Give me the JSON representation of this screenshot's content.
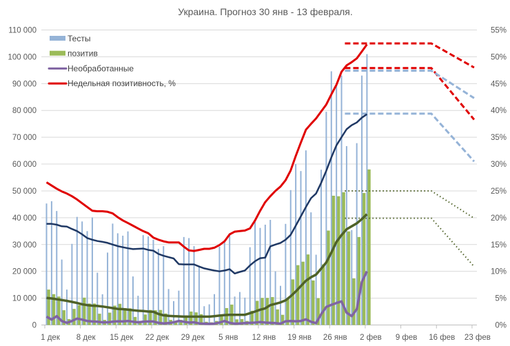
{
  "chart_data": {
    "type": "bar+line",
    "title": "Украина. Прогноз 30 янв - 13 февраля.",
    "left_axis": {
      "ylim": [
        0,
        110000
      ],
      "ticks": [
        "0",
        "10 000",
        "20 000",
        "30 000",
        "40 000",
        "50 000",
        "60 000",
        "70 000",
        "80 000",
        "90 000",
        "100 000",
        "110 000"
      ]
    },
    "right_axis": {
      "ylim": [
        0,
        55
      ],
      "unit": "%",
      "ticks": [
        "0%",
        "5%",
        "10%",
        "15%",
        "20%",
        "25%",
        "30%",
        "35%",
        "40%",
        "45%",
        "50%",
        "55%"
      ]
    },
    "x_ticks": [
      "1 дек",
      "8 дек",
      "15 дек",
      "22 дек",
      "29 дек",
      "5 янв",
      "12 янв",
      "19 янв",
      "26 янв",
      "2 фев",
      "9 фев",
      "16 фев",
      "23 фев"
    ],
    "grid": true,
    "legend_position": "top-left",
    "legend": [
      {
        "label": "Тесты",
        "kind": "bar",
        "color": "#95b3d7"
      },
      {
        "label": "позитив",
        "kind": "bar",
        "color": "#9bbb59"
      },
      {
        "label": "Необработанные",
        "kind": "line",
        "color": "#8064a2"
      },
      {
        "label": "Недельная позитивность, %",
        "kind": "line",
        "color": "#e00000"
      }
    ],
    "dates": [
      "1 дек",
      "2 дек",
      "3 дек",
      "4 дек",
      "5 дек",
      "6 дек",
      "7 дек",
      "8 дек",
      "9 дек",
      "10 дек",
      "11 дек",
      "12 дек",
      "13 дек",
      "14 дек",
      "15 дек",
      "16 дек",
      "17 дек",
      "18 дек",
      "19 дек",
      "20 дек",
      "21 дек",
      "22 дек",
      "23 дек",
      "24 дек",
      "25 дек",
      "26 дек",
      "27 дек",
      "28 дек",
      "29 дек",
      "30 дек",
      "31 дек",
      "1 янв",
      "2 янв",
      "3 янв",
      "4 янв",
      "5 янв",
      "6 янв",
      "7 янв",
      "8 янв",
      "9 янв",
      "10 янв",
      "11 янв",
      "12 янв",
      "13 янв",
      "14 янв",
      "15 янв",
      "16 янв",
      "17 янв",
      "18 янв",
      "19 янв",
      "20 янв",
      "21 янв",
      "22 янв",
      "23 янв",
      "24 янв",
      "25 янв",
      "26 янв",
      "27 янв",
      "28 янв",
      "29 янв",
      "30 янв",
      "31 янв",
      "1 фев",
      "2 фев"
    ],
    "series": [
      {
        "name": "Тесты",
        "type": "bar",
        "axis": "left",
        "color": "#95b3d7",
        "values": [
          45300,
          46150,
          42500,
          24400,
          13200,
          30250,
          40300,
          38600,
          35000,
          40100,
          19500,
          11450,
          27000,
          37800,
          34200,
          33300,
          34900,
          18100,
          10900,
          33500,
          33000,
          31800,
          28400,
          29400,
          13400,
          8900,
          12800,
          32800,
          32400,
          29400,
          21500,
          7000,
          7700,
          11500,
          29200,
          30900,
          33500,
          10600,
          12300,
          10200,
          29000,
          38600,
          36200,
          37400,
          39200,
          20000,
          14600,
          37700,
          50300,
          60000,
          57400,
          65100,
          42000,
          26200,
          57900,
          79500,
          94600,
          90200,
          93000,
          66700,
          35400,
          67800,
          93000,
          101000
        ]
      },
      {
        "name": "позитив",
        "type": "bar",
        "axis": "left",
        "color": "#9bbb59",
        "values": [
          13200,
          11500,
          10600,
          5500,
          2200,
          6000,
          7400,
          10200,
          8000,
          8000,
          4200,
          1900,
          4600,
          7200,
          7900,
          6300,
          6200,
          3000,
          1500,
          3900,
          5600,
          5500,
          5600,
          4300,
          1900,
          900,
          1900,
          3600,
          5000,
          4700,
          4000,
          1200,
          1000,
          1500,
          3900,
          6300,
          7600,
          2100,
          2200,
          1500,
          5300,
          9000,
          10100,
          10100,
          10400,
          5800,
          3800,
          10000,
          17000,
          22300,
          23600,
          26300,
          16600,
          10000,
          22600,
          35200,
          48200,
          48000,
          49500,
          34900,
          17400,
          32800,
          49200,
          58000
        ]
      },
      {
        "name": "Необработанные",
        "type": "line",
        "axis": "left",
        "color": "#8064a2",
        "values": [
          3100,
          2000,
          3300,
          1500,
          800,
          1500,
          2400,
          2000,
          1500,
          1300,
          1200,
          1000,
          1000,
          1200,
          1400,
          1300,
          1500,
          1200,
          1000,
          1200,
          1300,
          1300,
          800,
          600,
          700,
          1000,
          1500,
          1200,
          900,
          1000,
          600,
          500,
          400,
          500,
          900,
          1500,
          800,
          500,
          600,
          700,
          800,
          900,
          1100,
          900,
          800,
          700,
          500,
          1400,
          1500,
          1400,
          1500,
          2100,
          1200,
          700,
          4000,
          6700,
          7500,
          8200,
          8800,
          4600,
          3300,
          5900,
          16100,
          20000
        ]
      },
      {
        "name": "Недельная позитивность, %",
        "type": "line",
        "axis": "right",
        "color": "#e00000",
        "values": [
          26.6,
          26.0,
          25.4,
          24.9,
          24.5,
          24.0,
          23.4,
          22.7,
          22.0,
          21.3,
          21.2,
          21.2,
          21.1,
          20.8,
          20.1,
          19.5,
          19.0,
          18.5,
          18.0,
          17.5,
          17.1,
          16.3,
          15.9,
          15.6,
          15.4,
          15.4,
          15.4,
          14.6,
          13.9,
          13.8,
          14.0,
          14.2,
          14.2,
          14.4,
          14.9,
          15.6,
          16.9,
          17.4,
          17.5,
          17.6,
          18.0,
          19.5,
          21.3,
          22.9,
          24.0,
          25.0,
          25.8,
          27.0,
          28.8,
          31.5,
          34.0,
          36.4,
          37.5,
          38.5,
          39.8,
          41.1,
          43.0,
          44.8,
          47.2,
          48.4,
          49.0,
          49.7,
          51.0,
          52.3
        ]
      },
      {
        "type": "line",
        "axis": "left",
        "color": "#1f3864",
        "values": [
          37700,
          37700,
          37400,
          36800,
          36700,
          35800,
          35000,
          33800,
          32400,
          31800,
          31300,
          31000,
          30600,
          30000,
          29400,
          29000,
          28600,
          28300,
          28400,
          28500,
          28000,
          27700,
          26500,
          25800,
          25300,
          24800,
          22700,
          22600,
          22600,
          22600,
          21800,
          21100,
          20700,
          20300,
          20000,
          20300,
          20800,
          19200,
          19800,
          20300,
          22200,
          23800,
          24900,
          25100,
          29300,
          30000,
          30600,
          31800,
          33600,
          37000,
          40500,
          44000,
          47300,
          49000,
          53000,
          57500,
          62500,
          67000,
          70000,
          73000,
          74500,
          75500,
          77300,
          78600
        ]
      },
      {
        "type": "line",
        "axis": "left",
        "color": "#4f6228",
        "values": [
          10100,
          9900,
          9600,
          9300,
          9000,
          8600,
          8200,
          7700,
          7400,
          7200,
          7100,
          6900,
          6600,
          6300,
          6000,
          5900,
          5700,
          5500,
          5300,
          5200,
          5000,
          4900,
          4100,
          3600,
          3400,
          3300,
          3200,
          3100,
          3100,
          3100,
          3100,
          3100,
          3100,
          3300,
          3500,
          3700,
          3800,
          3800,
          3800,
          3800,
          4400,
          5000,
          5700,
          6200,
          7400,
          7900,
          8400,
          9200,
          10700,
          12500,
          14500,
          16500,
          17800,
          18800,
          21000,
          23300,
          27000,
          31000,
          33500,
          35700,
          36800,
          37900,
          39500,
          41300
        ]
      }
    ],
    "forecasts": [
      {
        "style": "dashed",
        "axis": "right",
        "color": "#e00000",
        "x": [
          "29 янв",
          "15 фев",
          "23 фев"
        ],
        "values": [
          52.5,
          52.5,
          48.0
        ]
      },
      {
        "style": "dashed",
        "axis": "right",
        "color": "#e00000",
        "x": [
          "29 янв",
          "15 фев",
          "23 фев"
        ],
        "values": [
          47.9,
          47.9,
          38.3
        ]
      },
      {
        "style": "dashed",
        "axis": "left",
        "color": "#95b3d7",
        "x": [
          "29 янв",
          "15 фев",
          "23 фев"
        ],
        "values": [
          94800,
          94800,
          84600
        ]
      },
      {
        "style": "dashed",
        "axis": "left",
        "color": "#95b3d7",
        "x": [
          "29 янв",
          "15 фев",
          "23 фев"
        ],
        "values": [
          78800,
          78800,
          61000
        ]
      },
      {
        "style": "dotted",
        "axis": "left",
        "color": "#4f6228",
        "x": [
          "29 янв",
          "15 фев",
          "23 фев"
        ],
        "values": [
          50000,
          50000,
          39800
        ]
      },
      {
        "style": "dotted",
        "axis": "left",
        "color": "#4f6228",
        "x": [
          "29 янв",
          "15 фев",
          "23 фев"
        ],
        "values": [
          39800,
          39800,
          21800
        ]
      }
    ]
  }
}
